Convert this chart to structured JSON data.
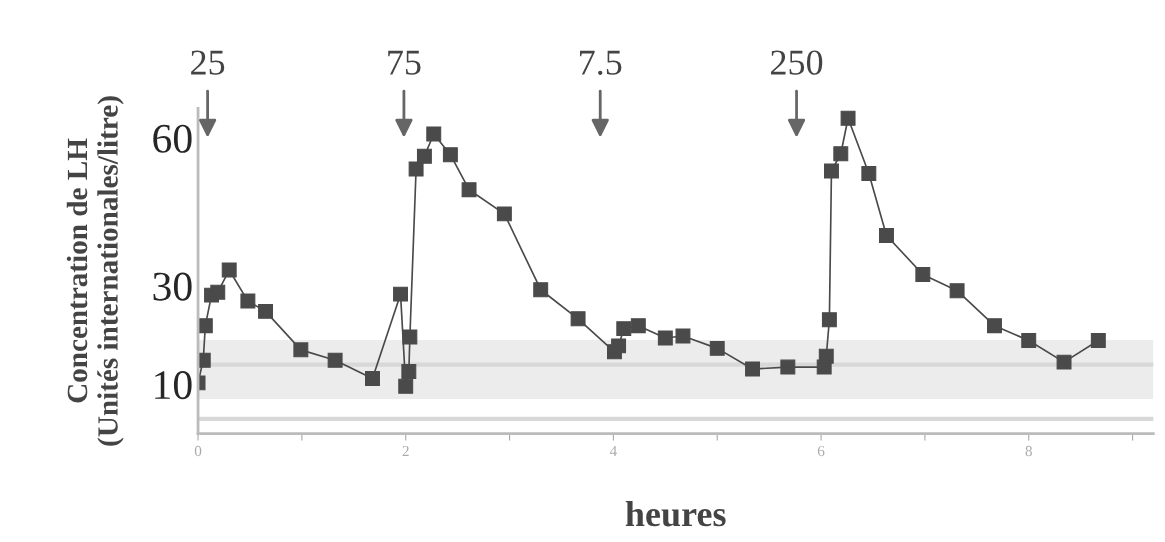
{
  "chart_data": {
    "type": "line",
    "xlabel": "heures",
    "ylabel": "Concentration de LH\n(Unités internationales/litre)",
    "x": [
      0.0,
      0.05,
      0.07,
      0.13,
      0.19,
      0.3,
      0.48,
      0.65,
      0.99,
      1.32,
      1.68,
      1.95,
      2.0,
      2.03,
      2.04,
      2.1,
      2.18,
      2.27,
      2.43,
      2.61,
      2.95,
      3.3,
      3.66,
      4.01,
      4.05,
      4.1,
      4.24,
      4.5,
      4.67,
      5.0,
      5.34,
      5.68,
      6.03,
      6.05,
      6.08,
      6.1,
      6.19,
      6.26,
      6.46,
      6.63,
      6.98,
      7.31,
      7.67,
      8.0,
      8.34,
      8.67
    ],
    "series": [
      {
        "color": "#4a4a4a",
        "values": [
          10.3,
          14.9,
          21.9,
          28.1,
          28.7,
          33.2,
          26.9,
          24.8,
          17.0,
          14.9,
          11.2,
          28.3,
          9.6,
          12.6,
          19.6,
          53.7,
          56.3,
          60.8,
          56.6,
          49.5,
          44.6,
          29.2,
          23.3,
          16.6,
          17.8,
          21.3,
          21.9,
          19.4,
          19.8,
          17.3,
          13.1,
          13.5,
          13.5,
          15.7,
          23.1,
          53.3,
          56.8,
          64.0,
          52.8,
          40.2,
          32.3,
          29.0,
          21.9,
          18.9,
          14.5,
          18.9
        ]
      }
    ],
    "xlim": [
      0,
      9.2
    ],
    "ylim": [
      0,
      66
    ],
    "xticks": [
      0,
      {
        "value": 1,
        "label": null
      },
      2,
      {
        "value": 3,
        "label": null
      },
      4,
      {
        "value": 5,
        "label": null
      },
      6,
      {
        "value": 7,
        "label": null
      },
      8,
      {
        "value": 9,
        "label": null
      }
    ],
    "yticks": [
      10,
      30,
      60
    ],
    "marker": "square",
    "grid": false,
    "legend": false,
    "bands": [
      {
        "axis": "y",
        "from": 7,
        "to": 19,
        "color": "#ececec"
      }
    ],
    "ref_lines": [
      {
        "axis": "y",
        "value": 14,
        "color": "#d8d8d8"
      },
      {
        "axis": "y",
        "value": 3,
        "color": "#d8d8d8"
      }
    ],
    "annotations": [
      "25",
      "75",
      "7.5",
      "250"
    ]
  }
}
